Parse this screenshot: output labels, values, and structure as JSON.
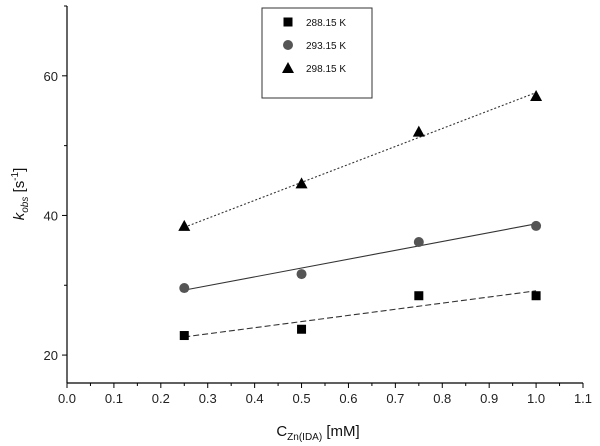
{
  "chart_data": {
    "type": "scatter",
    "xlabel_main": "C",
    "xlabel_sub": "Zn(IDA)",
    "xlabel_unit": " [mM]",
    "ylabel_main": "k",
    "ylabel_sub": "obs",
    "ylabel_unit": " [s",
    "ylabel_sup": "-1",
    "ylabel_close": "]",
    "xlim": [
      0.0,
      1.1
    ],
    "ylim": [
      16,
      70
    ],
    "xticks": [
      "0.0",
      "0.1",
      "0.2",
      "0.3",
      "0.4",
      "0.5",
      "0.6",
      "0.7",
      "0.8",
      "0.9",
      "1.0",
      "1.1"
    ],
    "xtick_values": [
      0.0,
      0.1,
      0.2,
      0.3,
      0.4,
      0.5,
      0.6,
      0.7,
      0.8,
      0.9,
      1.0,
      1.1
    ],
    "yticks": [
      "20",
      "40",
      "60"
    ],
    "ytick_values": [
      20,
      40,
      60
    ],
    "grid": false,
    "legend_position": "top-center",
    "series": [
      {
        "name": "288.15 K",
        "marker": "square",
        "color": "#000000",
        "line_style": "dashed",
        "x": [
          0.25,
          0.5,
          0.75,
          1.0
        ],
        "y": [
          22.8,
          23.7,
          28.5,
          28.5
        ],
        "fit": [
          [
            0.25,
            22.6
          ],
          [
            1.0,
            29.2
          ]
        ]
      },
      {
        "name": "293.15 K",
        "marker": "circle",
        "color": "#555555",
        "line_style": "solid",
        "x": [
          0.25,
          0.5,
          0.75,
          1.0
        ],
        "y": [
          29.6,
          31.6,
          36.2,
          38.5
        ],
        "fit": [
          [
            0.25,
            29.3
          ],
          [
            1.0,
            38.8
          ]
        ]
      },
      {
        "name": "298.15 K",
        "marker": "triangle",
        "color": "#000000",
        "line_style": "dotted",
        "x": [
          0.25,
          0.5,
          0.75,
          1.0
        ],
        "y": [
          38.5,
          44.6,
          52.0,
          57.1
        ],
        "fit": [
          [
            0.25,
            38.3
          ],
          [
            1.0,
            57.6
          ]
        ]
      }
    ]
  }
}
